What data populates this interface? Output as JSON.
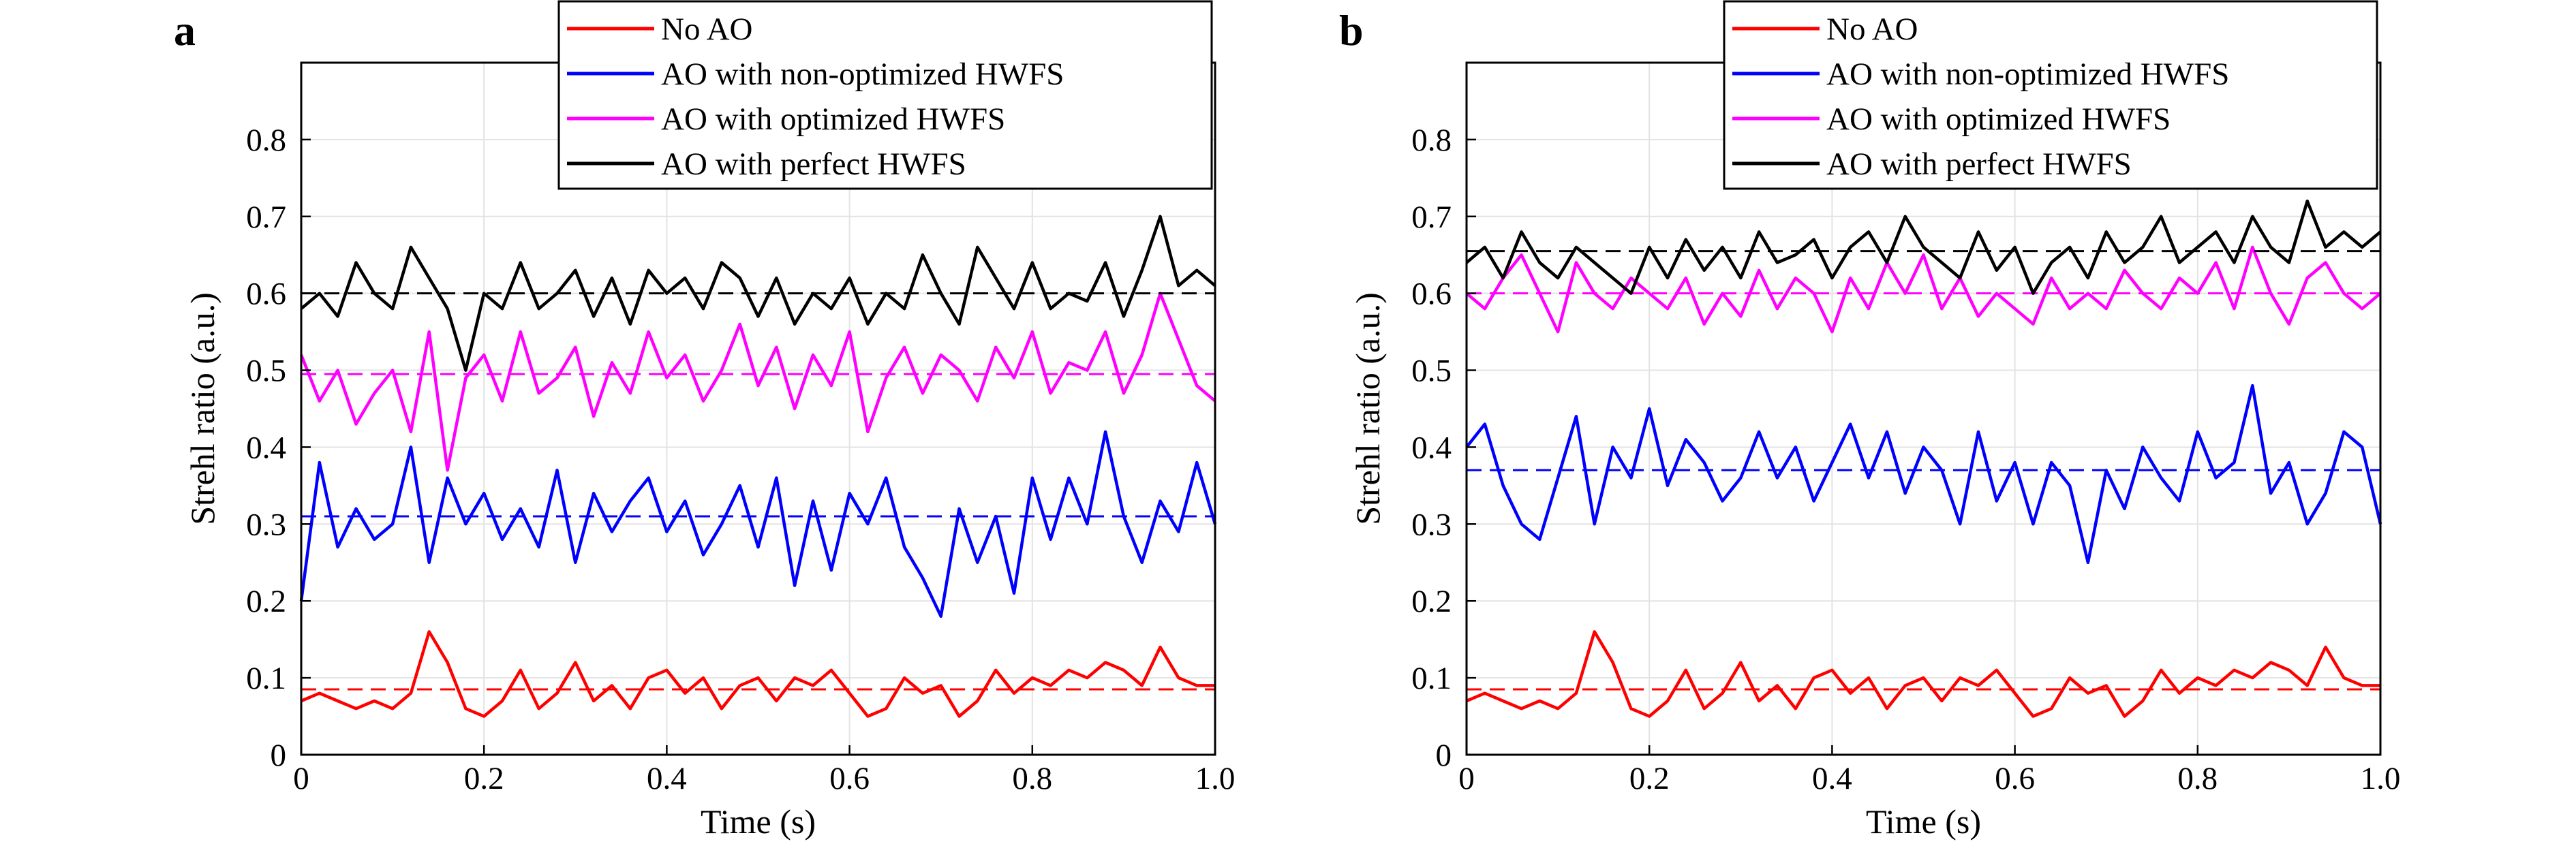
{
  "chart_data": [
    {
      "type": "line",
      "panel_label": "a",
      "xlabel": "Time (s)",
      "ylabel": "Strehl ratio (a.u.)",
      "xlim": [
        0,
        1.0
      ],
      "ylim": [
        0,
        0.9
      ],
      "xticks": [
        "0",
        "0.2",
        "0.4",
        "0.6",
        "0.8",
        "1.0"
      ],
      "yticks": [
        "0",
        "0.1",
        "0.2",
        "0.3",
        "0.4",
        "0.5",
        "0.6",
        "0.7",
        "0.8"
      ],
      "grid": true,
      "legend": "top-right",
      "x": [
        0,
        0.02,
        0.04,
        0.06,
        0.08,
        0.1,
        0.12,
        0.14,
        0.16,
        0.18,
        0.2,
        0.22,
        0.24,
        0.26,
        0.28,
        0.3,
        0.32,
        0.34,
        0.36,
        0.38,
        0.4,
        0.42,
        0.44,
        0.46,
        0.48,
        0.5,
        0.52,
        0.54,
        0.56,
        0.58,
        0.6,
        0.62,
        0.64,
        0.66,
        0.68,
        0.7,
        0.72,
        0.74,
        0.76,
        0.78,
        0.8,
        0.82,
        0.84,
        0.86,
        0.88,
        0.9,
        0.92,
        0.94,
        0.96,
        0.98,
        1.0
      ],
      "series": [
        {
          "name": "No AO",
          "color": "#ff0000",
          "mean": 0.085,
          "values": [
            0.07,
            0.08,
            0.07,
            0.06,
            0.07,
            0.06,
            0.08,
            0.16,
            0.12,
            0.06,
            0.05,
            0.07,
            0.11,
            0.06,
            0.08,
            0.12,
            0.07,
            0.09,
            0.06,
            0.1,
            0.11,
            0.08,
            0.1,
            0.06,
            0.09,
            0.1,
            0.07,
            0.1,
            0.09,
            0.11,
            0.08,
            0.05,
            0.06,
            0.1,
            0.08,
            0.09,
            0.05,
            0.07,
            0.11,
            0.08,
            0.1,
            0.09,
            0.11,
            0.1,
            0.12,
            0.11,
            0.09,
            0.14,
            0.1,
            0.09,
            0.09
          ]
        },
        {
          "name": "AO with non-optimized HWFS",
          "color": "#0000ff",
          "mean": 0.31,
          "values": [
            0.2,
            0.38,
            0.27,
            0.32,
            0.28,
            0.3,
            0.4,
            0.25,
            0.36,
            0.3,
            0.34,
            0.28,
            0.32,
            0.27,
            0.37,
            0.25,
            0.34,
            0.29,
            0.33,
            0.36,
            0.29,
            0.33,
            0.26,
            0.3,
            0.35,
            0.27,
            0.36,
            0.22,
            0.33,
            0.24,
            0.34,
            0.3,
            0.36,
            0.27,
            0.23,
            0.18,
            0.32,
            0.25,
            0.31,
            0.21,
            0.36,
            0.28,
            0.36,
            0.3,
            0.42,
            0.31,
            0.25,
            0.33,
            0.29,
            0.38,
            0.3
          ]
        },
        {
          "name": "AO with optimized HWFS",
          "color": "#ff00ff",
          "mean": 0.495,
          "values": [
            0.52,
            0.46,
            0.5,
            0.43,
            0.47,
            0.5,
            0.42,
            0.55,
            0.37,
            0.49,
            0.52,
            0.46,
            0.55,
            0.47,
            0.49,
            0.53,
            0.44,
            0.51,
            0.47,
            0.55,
            0.49,
            0.52,
            0.46,
            0.5,
            0.56,
            0.48,
            0.53,
            0.45,
            0.52,
            0.48,
            0.55,
            0.42,
            0.49,
            0.53,
            0.47,
            0.52,
            0.5,
            0.46,
            0.53,
            0.49,
            0.55,
            0.47,
            0.51,
            0.5,
            0.55,
            0.47,
            0.52,
            0.6,
            0.54,
            0.48,
            0.46
          ]
        },
        {
          "name": "AO with perfect HWFS",
          "color": "#000000",
          "mean": 0.6,
          "values": [
            0.58,
            0.6,
            0.57,
            0.64,
            0.6,
            0.58,
            0.66,
            0.62,
            0.58,
            0.5,
            0.6,
            0.58,
            0.64,
            0.58,
            0.6,
            0.63,
            0.57,
            0.62,
            0.56,
            0.63,
            0.6,
            0.62,
            0.58,
            0.64,
            0.62,
            0.57,
            0.62,
            0.56,
            0.6,
            0.58,
            0.62,
            0.56,
            0.6,
            0.58,
            0.65,
            0.6,
            0.56,
            0.66,
            0.62,
            0.58,
            0.64,
            0.58,
            0.6,
            0.59,
            0.64,
            0.57,
            0.63,
            0.7,
            0.61,
            0.63,
            0.61
          ]
        }
      ]
    },
    {
      "type": "line",
      "panel_label": "b",
      "xlabel": "Time (s)",
      "ylabel": "Strehl ratio (a.u.)",
      "xlim": [
        0,
        1.0
      ],
      "ylim": [
        0,
        0.9
      ],
      "xticks": [
        "0",
        "0.2",
        "0.4",
        "0.6",
        "0.8",
        "1.0"
      ],
      "yticks": [
        "0",
        "0.1",
        "0.2",
        "0.3",
        "0.4",
        "0.5",
        "0.6",
        "0.7",
        "0.8"
      ],
      "grid": true,
      "legend": "top-right",
      "x": [
        0,
        0.02,
        0.04,
        0.06,
        0.08,
        0.1,
        0.12,
        0.14,
        0.16,
        0.18,
        0.2,
        0.22,
        0.24,
        0.26,
        0.28,
        0.3,
        0.32,
        0.34,
        0.36,
        0.38,
        0.4,
        0.42,
        0.44,
        0.46,
        0.48,
        0.5,
        0.52,
        0.54,
        0.56,
        0.58,
        0.6,
        0.62,
        0.64,
        0.66,
        0.68,
        0.7,
        0.72,
        0.74,
        0.76,
        0.78,
        0.8,
        0.82,
        0.84,
        0.86,
        0.88,
        0.9,
        0.92,
        0.94,
        0.96,
        0.98,
        1.0
      ],
      "series": [
        {
          "name": "No AO",
          "color": "#ff0000",
          "mean": 0.085,
          "values": [
            0.07,
            0.08,
            0.07,
            0.06,
            0.07,
            0.06,
            0.08,
            0.16,
            0.12,
            0.06,
            0.05,
            0.07,
            0.11,
            0.06,
            0.08,
            0.12,
            0.07,
            0.09,
            0.06,
            0.1,
            0.11,
            0.08,
            0.1,
            0.06,
            0.09,
            0.1,
            0.07,
            0.1,
            0.09,
            0.11,
            0.08,
            0.05,
            0.06,
            0.1,
            0.08,
            0.09,
            0.05,
            0.07,
            0.11,
            0.08,
            0.1,
            0.09,
            0.11,
            0.1,
            0.12,
            0.11,
            0.09,
            0.14,
            0.1,
            0.09,
            0.09
          ]
        },
        {
          "name": "AO with non-optimized HWFS",
          "color": "#0000ff",
          "mean": 0.37,
          "values": [
            0.4,
            0.43,
            0.35,
            0.3,
            0.28,
            0.36,
            0.44,
            0.3,
            0.4,
            0.36,
            0.45,
            0.35,
            0.41,
            0.38,
            0.33,
            0.36,
            0.42,
            0.36,
            0.4,
            0.33,
            0.38,
            0.43,
            0.36,
            0.42,
            0.34,
            0.4,
            0.37,
            0.3,
            0.42,
            0.33,
            0.38,
            0.3,
            0.38,
            0.35,
            0.25,
            0.37,
            0.32,
            0.4,
            0.36,
            0.33,
            0.42,
            0.36,
            0.38,
            0.48,
            0.34,
            0.38,
            0.3,
            0.34,
            0.42,
            0.4,
            0.3
          ]
        },
        {
          "name": "AO with optimized HWFS",
          "color": "#ff00ff",
          "mean": 0.6,
          "values": [
            0.6,
            0.58,
            0.62,
            0.65,
            0.6,
            0.55,
            0.64,
            0.6,
            0.58,
            0.62,
            0.6,
            0.58,
            0.62,
            0.56,
            0.6,
            0.57,
            0.63,
            0.58,
            0.62,
            0.6,
            0.55,
            0.62,
            0.58,
            0.64,
            0.6,
            0.65,
            0.58,
            0.62,
            0.57,
            0.6,
            0.58,
            0.56,
            0.62,
            0.58,
            0.6,
            0.58,
            0.63,
            0.6,
            0.58,
            0.62,
            0.6,
            0.64,
            0.58,
            0.66,
            0.6,
            0.56,
            0.62,
            0.64,
            0.6,
            0.58,
            0.6
          ]
        },
        {
          "name": "AO with perfect HWFS",
          "color": "#000000",
          "mean": 0.655,
          "values": [
            0.64,
            0.66,
            0.62,
            0.68,
            0.64,
            0.62,
            0.66,
            0.64,
            0.62,
            0.6,
            0.66,
            0.62,
            0.67,
            0.63,
            0.66,
            0.62,
            0.68,
            0.64,
            0.65,
            0.67,
            0.62,
            0.66,
            0.68,
            0.64,
            0.7,
            0.66,
            0.64,
            0.62,
            0.68,
            0.63,
            0.66,
            0.6,
            0.64,
            0.66,
            0.62,
            0.68,
            0.64,
            0.66,
            0.7,
            0.64,
            0.66,
            0.68,
            0.64,
            0.7,
            0.66,
            0.64,
            0.72,
            0.66,
            0.68,
            0.66,
            0.68
          ]
        }
      ]
    }
  ]
}
